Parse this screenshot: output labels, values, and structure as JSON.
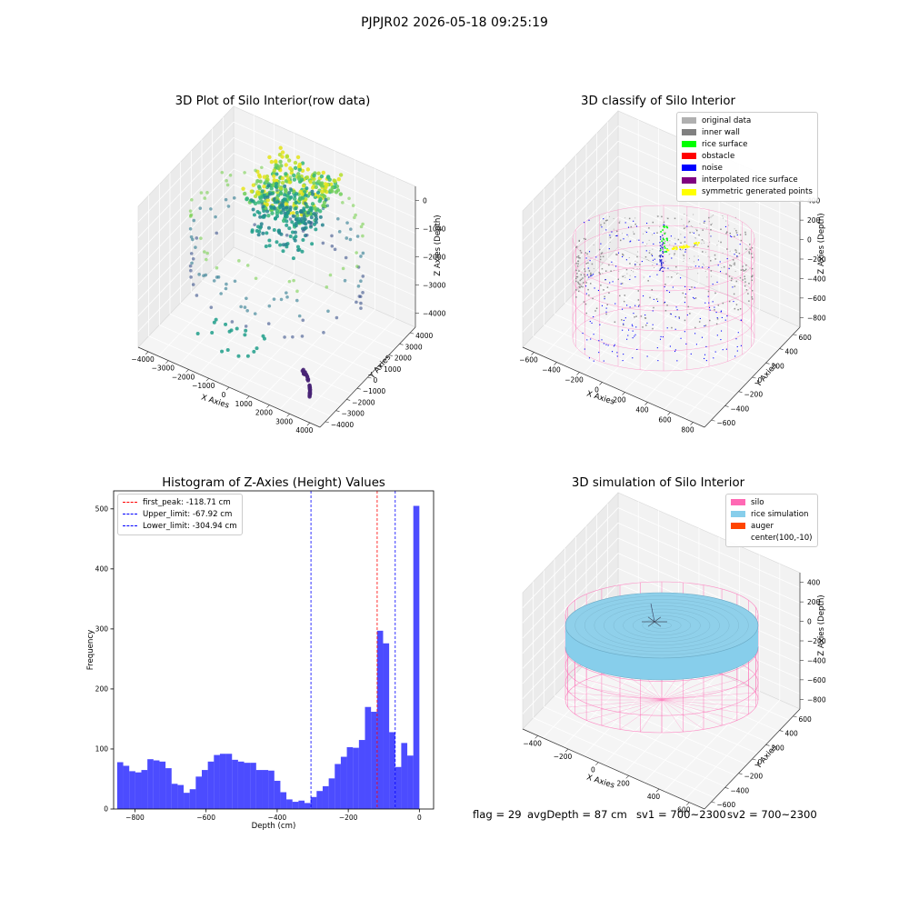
{
  "suptitle": "PJPJR02 2026-05-18 09:25:19",
  "chart_data": [
    {
      "type": "scatter",
      "title": "3D Plot of Silo Interior(row data)",
      "xlabel": "X Axies",
      "ylabel": "Y Axies",
      "zlabel": "Z Axies (Depth)",
      "xticks": [
        "−4000",
        "−3000",
        "−2000",
        "−1000",
        "0",
        "1000",
        "2000",
        "3000",
        "4000"
      ],
      "yticks": [
        "−4000",
        "−3000",
        "−2000",
        "−1000",
        "0",
        "1000",
        "2000",
        "3000",
        "4000"
      ],
      "zticks": [
        "−4000",
        "−3000",
        "−2000",
        "−1000",
        "0"
      ],
      "xlim": [
        -4000,
        4000
      ],
      "ylim": [
        -4000,
        4000
      ],
      "zlim": [
        -4500,
        0
      ],
      "colormap": "viridis"
    },
    {
      "type": "scatter",
      "title": "3D classify of Silo Interior",
      "xlabel": "X Axies",
      "ylabel": "Y Axies",
      "zlabel": "Z Axies (Depth)",
      "xticks": [
        "−600",
        "−400",
        "−200",
        "0",
        "200",
        "400",
        "600",
        "800"
      ],
      "yticks": [
        "−600",
        "−400",
        "−200",
        "0",
        "200",
        "400",
        "600"
      ],
      "zticks": [
        "−800",
        "−600",
        "−400",
        "−200",
        "0",
        "200",
        "400"
      ],
      "legend": [
        {
          "label": "original data",
          "color": "#b0b0b0"
        },
        {
          "label": "inner wall",
          "color": "#808080"
        },
        {
          "label": "rice surface",
          "color": "#00ff00"
        },
        {
          "label": "obstacle",
          "color": "#ff0000"
        },
        {
          "label": "noise",
          "color": "#0000ff"
        },
        {
          "label": "interpolated rice surface",
          "color": "#800080"
        },
        {
          "label": "symmetric generated points",
          "color": "#ffff00"
        }
      ],
      "legend_position": "top-right",
      "silo_color": "#ff69b4"
    },
    {
      "type": "bar",
      "title": "Histogram of Z-Axies (Height) Values",
      "xlabel": "Depth (cm)",
      "ylabel": "Frequency",
      "xlim": [
        -860,
        40
      ],
      "ylim": [
        0,
        530
      ],
      "xticks": [
        -800,
        -600,
        -400,
        -200,
        0
      ],
      "yticks": [
        0,
        100,
        200,
        300,
        400,
        500
      ],
      "bin_width": 17,
      "bin_start": -850,
      "values": [
        78,
        72,
        63,
        61,
        65,
        83,
        81,
        79,
        68,
        42,
        40,
        27,
        33,
        54,
        65,
        79,
        90,
        92,
        92,
        82,
        79,
        77,
        77,
        65,
        65,
        64,
        47,
        28,
        16,
        12,
        14,
        10,
        20,
        30,
        38,
        51,
        75,
        87,
        103,
        102,
        115,
        170,
        162,
        297,
        276,
        128,
        70,
        110,
        89,
        505
      ],
      "bar_color": "#0000ff",
      "lines": [
        {
          "label": "first_peak: -118.71 cm",
          "x": -118.71,
          "color": "#ff0000"
        },
        {
          "label": "Upper_limit: -67.92 cm",
          "x": -67.92,
          "color": "#0000ff"
        },
        {
          "label": "Lower_limit: -304.94 cm",
          "x": -304.94,
          "color": "#0000ff"
        }
      ],
      "legend_position": "top-left"
    },
    {
      "type": "surface",
      "title": "3D simulation of Silo Interior",
      "xlabel": "X Axies",
      "ylabel": "Y Axies",
      "zlabel": "Z Axies (Depth)",
      "xticks": [
        "−400",
        "−200",
        "0",
        "200",
        "400",
        "600"
      ],
      "yticks": [
        "−600",
        "−400",
        "−200",
        "0",
        "200",
        "400",
        "600"
      ],
      "zticks": [
        "−800",
        "−600",
        "−400",
        "−200",
        "0",
        "200",
        "400"
      ],
      "legend": [
        {
          "label": "silo",
          "color": "#ff69b4"
        },
        {
          "label": "rice simulation",
          "color": "#87ceeb"
        },
        {
          "label": "auger",
          "color": "#ff4500"
        },
        {
          "label": "center(100,-10)",
          "color": ""
        }
      ],
      "legend_position": "top-right"
    }
  ],
  "footer": {
    "flag": "flag = 29",
    "avg_depth": "avgDepth = 87 cm",
    "sv1": "sv1 = 700~2300",
    "sv2": "sv2 = 700~2300"
  }
}
